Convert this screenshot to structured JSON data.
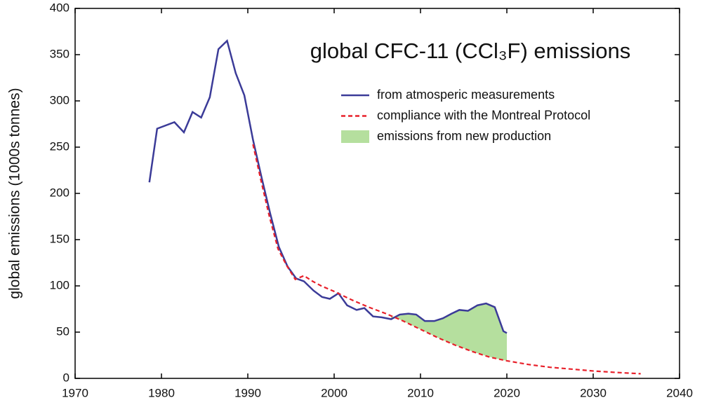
{
  "chart_data": {
    "type": "line",
    "title": "global CFC-11 (CCl₃F) emissions",
    "y_label": "global emissions (1000s tonnes)",
    "xlim": [
      1970,
      2040
    ],
    "xticks": [
      1970,
      1980,
      1990,
      2000,
      2010,
      2020,
      2030,
      2040
    ],
    "ylim": [
      0,
      400
    ],
    "yticks": [
      0,
      50,
      100,
      150,
      200,
      250,
      300,
      350,
      400
    ],
    "series": [
      {
        "name": "from atmosperic measurements",
        "color": "#3b3b98",
        "style": "solid",
        "x": [
          1978.6,
          1979.5,
          1981.5,
          1982.6,
          1983.6,
          1984.6,
          1985.6,
          1986.6,
          1987.6,
          1988.6,
          1989.6,
          1990.6,
          1991.6,
          1992.6,
          1993.6,
          1994.6,
          1995.6,
          1996.5,
          1997.6,
          1998.6,
          1999.5,
          2000.5,
          2001.5,
          2002.6,
          2003.5,
          2004.5,
          2005.5,
          2006.6,
          2007.6,
          2008.6,
          2009.5,
          2010.5,
          2011.6,
          2012.6,
          2013.6,
          2014.5,
          2015.5,
          2016.6,
          2017.6,
          2018.6,
          2019.6,
          2020
        ],
        "values": [
          212,
          270,
          277,
          266,
          288,
          282,
          304,
          356,
          365,
          330,
          306,
          258,
          217,
          178,
          142,
          121,
          108,
          105,
          95,
          88,
          86,
          92,
          79,
          74,
          76,
          67,
          66,
          64,
          69,
          70,
          69,
          62,
          62,
          65,
          70,
          74,
          73,
          79,
          81,
          77,
          51,
          49
        ]
      },
      {
        "name": "compliance with the Montreal Protocol",
        "color": "#e8202a",
        "style": "dashed",
        "x": [
          1990.6,
          1991.5,
          1992.5,
          1993.5,
          1994.5,
          1995.5,
          1996.5,
          1997.5,
          1998.5,
          2000,
          2002,
          2004,
          2006,
          2008,
          2010,
          2012,
          2014,
          2016,
          2018,
          2020,
          2022.5,
          2025,
          2027.5,
          2030,
          2032.5,
          2035.5
        ],
        "values": [
          253,
          215,
          175,
          140,
          122,
          107,
          111,
          105,
          100,
          94,
          85,
          77,
          70,
          62,
          53,
          44,
          36,
          29,
          23,
          19,
          15,
          12,
          10,
          8,
          6.5,
          5
        ]
      },
      {
        "name": "emissions from new production",
        "color": "#b5df9e",
        "style": "area",
        "x": [
          2006.6,
          2007.6,
          2008.6,
          2009.5,
          2010.5,
          2011.6,
          2012.6,
          2013.6,
          2014.5,
          2015.5,
          2016.6,
          2017.6,
          2018.6,
          2019.6,
          2020
        ],
        "values": [
          64,
          69,
          70,
          69,
          62,
          62,
          65,
          70,
          74,
          73,
          79,
          81,
          77,
          51,
          49
        ]
      }
    ]
  }
}
